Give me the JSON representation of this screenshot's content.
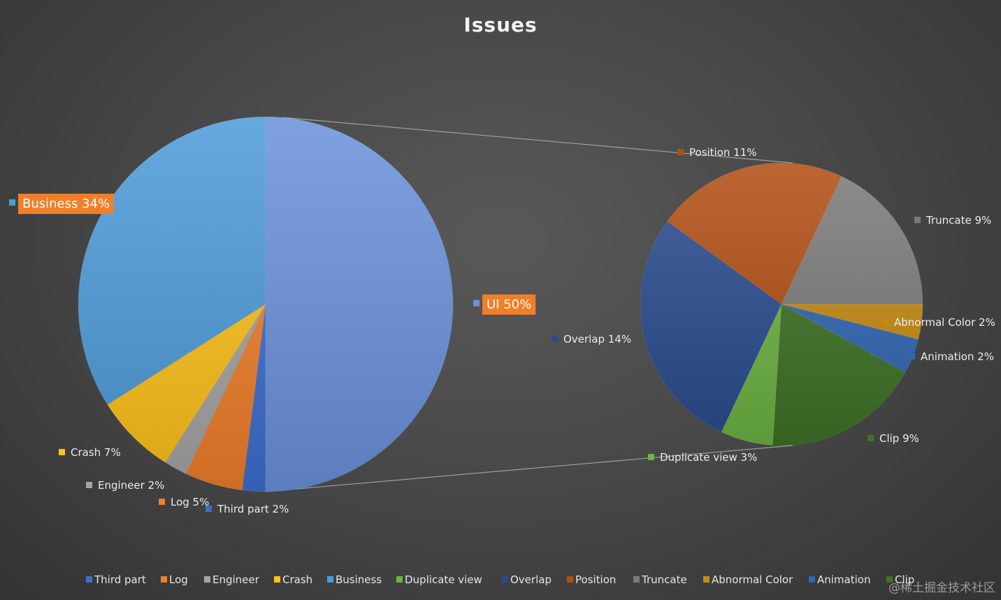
{
  "chart_data": {
    "type": "pie",
    "subtype": "pie-of-pie",
    "title": "Issues",
    "legend_position": "bottom",
    "primary": {
      "slices": [
        {
          "name": "Third part",
          "value": 2,
          "label": "Third part 2%",
          "color": "#3d6fd1"
        },
        {
          "name": "Log",
          "value": 5,
          "label": "Log 5%",
          "color": "#f07f2a"
        },
        {
          "name": "Engineer",
          "value": 2,
          "label": "Engineer 2%",
          "color": "#a5a5a5"
        },
        {
          "name": "Crash",
          "value": 7,
          "label": "Crash 7%",
          "color": "#ffc21a"
        },
        {
          "name": "Business",
          "value": 34,
          "label": "Business 34%",
          "color": "#4c9bd9"
        },
        {
          "name": "UI",
          "value": 50,
          "label": "UI 50%",
          "color": "#6b92dc"
        }
      ]
    },
    "secondary": {
      "source_slice": "UI",
      "slices": [
        {
          "name": "Abnormal Color",
          "value": 2,
          "label": "Abnormal Color 2%",
          "color": "#c68b12"
        },
        {
          "name": "Animation",
          "value": 2,
          "label": "Animation 2%",
          "color": "#2f67b4"
        },
        {
          "name": "Clip",
          "value": 9,
          "label": "Clip 9%",
          "color": "#3f7226"
        },
        {
          "name": "Duplicate   view",
          "value": 3,
          "label": "Duplicate   view 3%",
          "color": "#6cb343"
        },
        {
          "name": "Overlap",
          "value": 14,
          "label": "Overlap 14%",
          "color": "#294b8f"
        },
        {
          "name": "Position",
          "value": 11,
          "label": "Position 11%",
          "color": "#b04d12"
        },
        {
          "name": "Truncate",
          "value": 9,
          "label": "Truncate 9%",
          "color": "#7a7a7a"
        }
      ]
    },
    "legend": [
      {
        "name": "Third part",
        "color": "#3d6fd1"
      },
      {
        "name": "Log",
        "color": "#f07f2a"
      },
      {
        "name": "Engineer",
        "color": "#a5a5a5"
      },
      {
        "name": "Crash",
        "color": "#ffc21a"
      },
      {
        "name": "Business",
        "color": "#4c9bd9"
      },
      {
        "name": "Duplicate   view",
        "color": "#6cb343"
      },
      {
        "name": "Overlap",
        "color": "#294b8f"
      },
      {
        "name": "Position",
        "color": "#b04d12"
      },
      {
        "name": "Truncate",
        "color": "#7a7a7a"
      },
      {
        "name": "Abnormal Color",
        "color": "#c68b12"
      },
      {
        "name": "Animation",
        "color": "#2f67b4"
      },
      {
        "name": "Clip",
        "color": "#3f7226"
      }
    ],
    "highlight_color": "#f07f2a"
  },
  "watermark": "@稀土掘金技术社区"
}
